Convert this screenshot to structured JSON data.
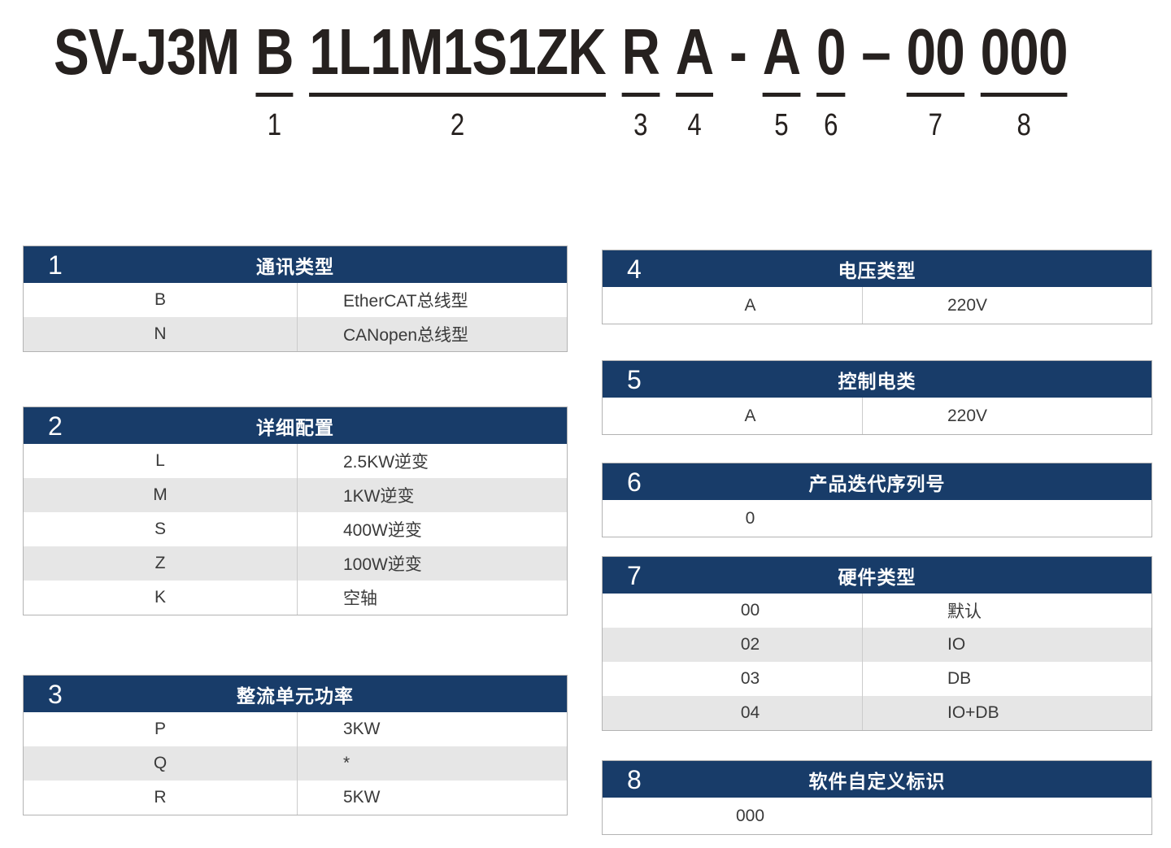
{
  "colors": {
    "header_navy": "#183c69",
    "row_alt_gray": "#e6e6e6",
    "row_text": "#3a3a3a",
    "model_text": "#26211f",
    "table_border": "#b3b3b3",
    "column_divider": "#cccccc"
  },
  "model_code": {
    "full": "SV-J3M B 1L1M1S1ZK R A - A 0 – 00 000",
    "segments": [
      {
        "text": "SV-J3M",
        "num": ""
      },
      {
        "text": "B",
        "num": "1"
      },
      {
        "text": "1L1M1S1ZK",
        "num": "2"
      },
      {
        "text": "R",
        "num": "3"
      },
      {
        "text": "A",
        "num": "4"
      },
      {
        "text": "-",
        "num": ""
      },
      {
        "text": "A",
        "num": "5"
      },
      {
        "text": "0",
        "num": "6"
      },
      {
        "text": "–",
        "num": ""
      },
      {
        "text": "00",
        "num": "7"
      },
      {
        "text": "000",
        "num": "8"
      }
    ]
  },
  "tables": [
    {
      "num": "1",
      "title": "通讯类型",
      "rows": [
        {
          "code": "B",
          "desc": "EtherCAT总线型"
        },
        {
          "code": "N",
          "desc": "CANopen总线型"
        }
      ]
    },
    {
      "num": "2",
      "title": "详细配置",
      "rows": [
        {
          "code": "L",
          "desc": "2.5KW逆变"
        },
        {
          "code": "M",
          "desc": "1KW逆变"
        },
        {
          "code": "S",
          "desc": "400W逆变"
        },
        {
          "code": "Z",
          "desc": "100W逆变"
        },
        {
          "code": "K",
          "desc": "空轴"
        }
      ]
    },
    {
      "num": "3",
      "title": "整流单元功率",
      "rows": [
        {
          "code": "P",
          "desc": "3KW"
        },
        {
          "code": "Q",
          "desc": "*"
        },
        {
          "code": "R",
          "desc": "5KW"
        }
      ]
    },
    {
      "num": "4",
      "title": "电压类型",
      "rows": [
        {
          "code": "A",
          "desc": "220V"
        }
      ]
    },
    {
      "num": "5",
      "title": "控制电类",
      "rows": [
        {
          "code": "A",
          "desc": "220V"
        }
      ]
    },
    {
      "num": "6",
      "title": "产品迭代序列号",
      "rows": [
        {
          "code": "0",
          "desc": ""
        }
      ]
    },
    {
      "num": "7",
      "title": "硬件类型",
      "rows": [
        {
          "code": "00",
          "desc": "默认"
        },
        {
          "code": "02",
          "desc": "IO"
        },
        {
          "code": "03",
          "desc": "DB"
        },
        {
          "code": "04",
          "desc": "IO+DB"
        }
      ]
    },
    {
      "num": "8",
      "title": "软件自定义标识",
      "rows": [
        {
          "code": "000",
          "desc": ""
        }
      ]
    }
  ]
}
